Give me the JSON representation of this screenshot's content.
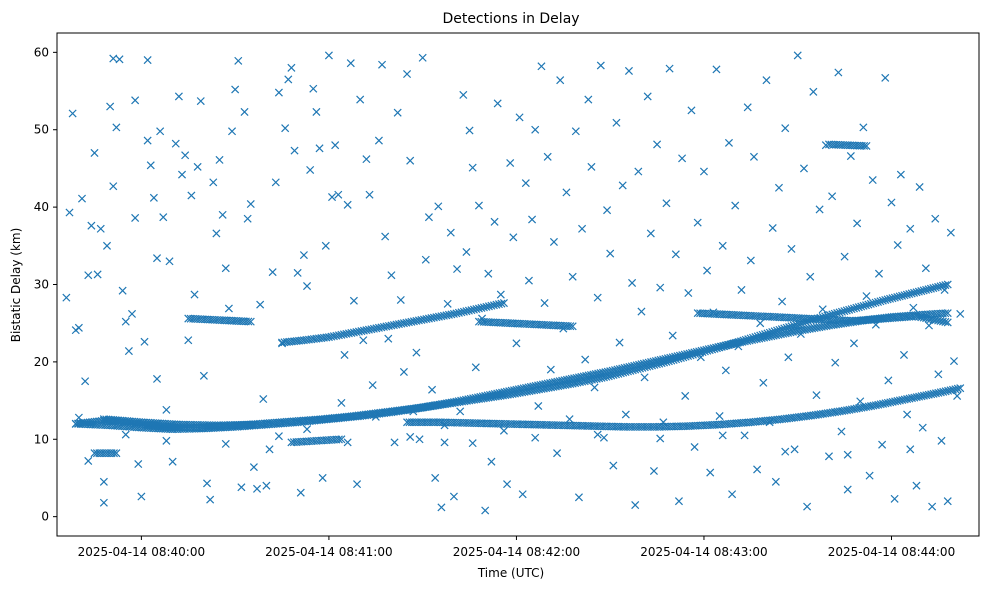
{
  "chart_data": {
    "type": "scatter",
    "title": "Detections in Delay",
    "xlabel": "Time (UTC)",
    "ylabel": "Bistatic Delay (km)",
    "marker": "x",
    "color": "#1f77b4",
    "grid": false,
    "x_tick_labels": [
      "2025-04-14 08:40:00",
      "2025-04-14 08:41:00",
      "2025-04-14 08:42:00",
      "2025-04-14 08:43:00",
      "2025-04-14 08:44:00"
    ],
    "x_ticks_sec": [
      0,
      60,
      120,
      180,
      240
    ],
    "xlim_sec": [
      -27,
      268
    ],
    "y_ticks": [
      0,
      10,
      20,
      30,
      40,
      50,
      60
    ],
    "ylim": [
      -2.5,
      62.5
    ],
    "tracks": [
      {
        "x_sec": [
          -21,
          -12,
          -2,
          8,
          18,
          28,
          38,
          48,
          58,
          68,
          78,
          88,
          98,
          108,
          118,
          128,
          138,
          148,
          158,
          168,
          178,
          188,
          198,
          208,
          218,
          228,
          238,
          248,
          258
        ],
        "y_km": [
          12.0,
          12.4,
          12.0,
          11.6,
          11.5,
          11.7,
          12.0,
          12.3,
          12.6,
          13.0,
          13.5,
          14.0,
          14.6,
          15.2,
          15.8,
          16.5,
          17.2,
          18.0,
          19.0,
          20.0,
          21.1,
          22.2,
          23.4,
          24.6,
          25.8,
          26.9,
          28.0,
          29.0,
          30.0
        ]
      },
      {
        "x_sec": [
          -21,
          -10,
          0,
          10,
          20,
          30,
          40,
          50,
          60,
          70,
          80,
          90,
          100,
          110,
          120,
          130,
          140,
          150,
          160,
          170,
          180,
          190,
          200,
          210,
          220,
          230,
          240,
          250,
          258
        ],
        "y_km": [
          12.0,
          11.8,
          11.5,
          11.3,
          11.4,
          11.6,
          11.9,
          12.2,
          12.6,
          13.0,
          13.5,
          14.1,
          14.8,
          15.6,
          16.4,
          17.2,
          18.0,
          18.8,
          19.7,
          20.6,
          21.5,
          22.4,
          23.2,
          24.0,
          24.7,
          25.3,
          25.8,
          26.1,
          26.3
        ]
      },
      {
        "x_sec": [
          45,
          52,
          60,
          68,
          76,
          84,
          92,
          100,
          108,
          116
        ],
        "y_km": [
          22.5,
          22.8,
          23.2,
          23.8,
          24.4,
          25.0,
          25.6,
          26.2,
          26.9,
          27.6
        ]
      },
      {
        "x_sec": [
          85,
          95,
          105,
          115,
          125,
          135,
          145,
          155,
          165,
          175,
          185,
          195,
          205,
          215,
          225,
          235,
          245,
          255,
          262
        ],
        "y_km": [
          12.2,
          12.2,
          12.1,
          12.0,
          11.9,
          11.8,
          11.7,
          11.6,
          11.6,
          11.7,
          11.9,
          12.2,
          12.6,
          13.1,
          13.7,
          14.4,
          15.2,
          16.0,
          16.6
        ]
      },
      {
        "x_sec": [
          15,
          25,
          35
        ],
        "y_km": [
          25.6,
          25.4,
          25.2
        ]
      },
      {
        "x_sec": [
          108,
          118,
          128,
          138
        ],
        "y_km": [
          25.2,
          25.0,
          24.8,
          24.6
        ]
      },
      {
        "x_sec": [
          178,
          188,
          198,
          208,
          218,
          228,
          238,
          248,
          258
        ],
        "y_km": [
          26.3,
          26.1,
          25.9,
          25.7,
          25.5,
          25.3,
          25.6,
          25.9,
          25.1
        ]
      },
      {
        "x_sec": [
          220,
          226,
          232
        ],
        "y_km": [
          48.1,
          48.0,
          47.9
        ]
      },
      {
        "x_sec": [
          -15,
          -8
        ],
        "y_km": [
          8.2,
          8.2
        ]
      },
      {
        "x_sec": [
          48,
          56,
          64
        ],
        "y_km": [
          9.6,
          9.8,
          10.0
        ]
      },
      {
        "x_sec": [
          -12,
          0,
          12,
          24,
          36
        ],
        "y_km": [
          12.6,
          12.2,
          11.9,
          11.8,
          11.9
        ]
      }
    ],
    "scatter_points": [
      [
        -24,
        28.3
      ],
      [
        -23,
        39.3
      ],
      [
        -22,
        52.1
      ],
      [
        -21,
        24.1
      ],
      [
        -20,
        24.4
      ],
      [
        -19,
        41.1
      ],
      [
        -18,
        17.5
      ],
      [
        -17,
        7.2
      ],
      [
        -17,
        31.2
      ],
      [
        -16,
        37.6
      ],
      [
        -15,
        47.0
      ],
      [
        -14,
        31.3
      ],
      [
        -13,
        37.2
      ],
      [
        -12,
        1.8
      ],
      [
        -12,
        4.5
      ],
      [
        -11,
        35.0
      ],
      [
        -10,
        53.0
      ],
      [
        -9,
        59.2
      ],
      [
        -9,
        42.7
      ],
      [
        -8,
        50.3
      ],
      [
        -7,
        59.1
      ],
      [
        -6,
        29.2
      ],
      [
        -5,
        25.2
      ],
      [
        -4,
        21.4
      ],
      [
        -3,
        26.2
      ],
      [
        -2,
        53.8
      ],
      [
        -2,
        38.6
      ],
      [
        -1,
        6.8
      ],
      [
        0,
        2.6
      ],
      [
        1,
        22.6
      ],
      [
        2,
        59.0
      ],
      [
        2,
        48.6
      ],
      [
        3,
        45.4
      ],
      [
        4,
        41.2
      ],
      [
        5,
        33.4
      ],
      [
        5,
        17.8
      ],
      [
        6,
        49.8
      ],
      [
        7,
        38.7
      ],
      [
        8,
        13.8
      ],
      [
        9,
        33.0
      ],
      [
        10,
        7.1
      ],
      [
        11,
        48.2
      ],
      [
        12,
        54.3
      ],
      [
        13,
        44.2
      ],
      [
        14,
        46.7
      ],
      [
        15,
        22.8
      ],
      [
        16,
        41.5
      ],
      [
        17,
        28.7
      ],
      [
        18,
        45.2
      ],
      [
        19,
        53.7
      ],
      [
        20,
        18.2
      ],
      [
        21,
        4.3
      ],
      [
        22,
        2.2
      ],
      [
        23,
        43.2
      ],
      [
        24,
        36.6
      ],
      [
        25,
        46.1
      ],
      [
        26,
        39.0
      ],
      [
        27,
        32.1
      ],
      [
        28,
        26.9
      ],
      [
        29,
        49.8
      ],
      [
        30,
        55.2
      ],
      [
        31,
        58.9
      ],
      [
        32,
        3.8
      ],
      [
        33,
        52.3
      ],
      [
        34,
        38.5
      ],
      [
        35,
        40.4
      ],
      [
        36,
        6.4
      ],
      [
        37,
        3.6
      ],
      [
        38,
        27.4
      ],
      [
        39,
        15.2
      ],
      [
        40,
        4.0
      ],
      [
        41,
        8.7
      ],
      [
        42,
        31.6
      ],
      [
        43,
        43.2
      ],
      [
        44,
        54.8
      ],
      [
        45,
        22.4
      ],
      [
        46,
        50.2
      ],
      [
        47,
        56.5
      ],
      [
        48,
        58.0
      ],
      [
        49,
        47.3
      ],
      [
        50,
        31.5
      ],
      [
        51,
        3.1
      ],
      [
        52,
        33.8
      ],
      [
        53,
        29.8
      ],
      [
        54,
        44.8
      ],
      [
        55,
        55.3
      ],
      [
        56,
        52.3
      ],
      [
        57,
        47.6
      ],
      [
        58,
        5.0
      ],
      [
        59,
        35.0
      ],
      [
        60,
        59.6
      ],
      [
        61,
        41.3
      ],
      [
        62,
        48.0
      ],
      [
        63,
        41.6
      ],
      [
        64,
        14.7
      ],
      [
        65,
        20.9
      ],
      [
        66,
        40.3
      ],
      [
        67,
        58.6
      ],
      [
        68,
        27.9
      ],
      [
        69,
        4.2
      ],
      [
        70,
        53.9
      ],
      [
        71,
        22.8
      ],
      [
        72,
        46.2
      ],
      [
        73,
        41.6
      ],
      [
        74,
        17.0
      ],
      [
        75,
        12.9
      ],
      [
        76,
        48.6
      ],
      [
        77,
        58.4
      ],
      [
        78,
        36.2
      ],
      [
        79,
        23.0
      ],
      [
        80,
        31.2
      ],
      [
        81,
        9.6
      ],
      [
        82,
        52.2
      ],
      [
        83,
        28.0
      ],
      [
        84,
        18.7
      ],
      [
        85,
        57.2
      ],
      [
        86,
        46.0
      ],
      [
        87,
        13.6
      ],
      [
        88,
        21.2
      ],
      [
        89,
        10.0
      ],
      [
        90,
        59.3
      ],
      [
        91,
        33.2
      ],
      [
        92,
        38.7
      ],
      [
        93,
        16.4
      ],
      [
        94,
        5.0
      ],
      [
        95,
        40.1
      ],
      [
        96,
        1.2
      ],
      [
        97,
        9.6
      ],
      [
        98,
        27.5
      ],
      [
        99,
        36.7
      ],
      [
        100,
        2.6
      ],
      [
        101,
        32.0
      ],
      [
        102,
        13.6
      ],
      [
        103,
        54.5
      ],
      [
        104,
        34.2
      ],
      [
        105,
        49.9
      ],
      [
        106,
        45.1
      ],
      [
        107,
        19.3
      ],
      [
        108,
        40.2
      ],
      [
        109,
        25.6
      ],
      [
        110,
        0.8
      ],
      [
        111,
        31.4
      ],
      [
        112,
        7.1
      ],
      [
        113,
        38.1
      ],
      [
        114,
        53.4
      ],
      [
        115,
        28.7
      ],
      [
        116,
        11.1
      ],
      [
        117,
        4.2
      ],
      [
        118,
        45.7
      ],
      [
        119,
        36.1
      ],
      [
        120,
        22.4
      ],
      [
        121,
        51.6
      ],
      [
        122,
        2.9
      ],
      [
        123,
        43.1
      ],
      [
        124,
        30.5
      ],
      [
        125,
        38.4
      ],
      [
        126,
        50.0
      ],
      [
        127,
        14.3
      ],
      [
        128,
        58.2
      ],
      [
        129,
        27.6
      ],
      [
        130,
        46.5
      ],
      [
        131,
        19.0
      ],
      [
        132,
        35.5
      ],
      [
        133,
        8.2
      ],
      [
        134,
        56.4
      ],
      [
        135,
        24.3
      ],
      [
        136,
        41.9
      ],
      [
        137,
        12.6
      ],
      [
        138,
        31.0
      ],
      [
        139,
        49.8
      ],
      [
        140,
        2.5
      ],
      [
        141,
        37.2
      ],
      [
        142,
        20.3
      ],
      [
        143,
        53.9
      ],
      [
        144,
        45.2
      ],
      [
        145,
        16.7
      ],
      [
        146,
        28.3
      ],
      [
        147,
        58.3
      ],
      [
        148,
        10.2
      ],
      [
        149,
        39.6
      ],
      [
        150,
        34.0
      ],
      [
        151,
        6.6
      ],
      [
        152,
        50.9
      ],
      [
        153,
        22.5
      ],
      [
        154,
        42.8
      ],
      [
        155,
        13.2
      ],
      [
        156,
        57.6
      ],
      [
        157,
        30.2
      ],
      [
        158,
        1.5
      ],
      [
        159,
        44.6
      ],
      [
        160,
        26.5
      ],
      [
        161,
        18.0
      ],
      [
        162,
        54.3
      ],
      [
        163,
        36.6
      ],
      [
        164,
        5.9
      ],
      [
        165,
        48.1
      ],
      [
        166,
        29.6
      ],
      [
        167,
        12.2
      ],
      [
        168,
        40.5
      ],
      [
        169,
        57.9
      ],
      [
        170,
        23.4
      ],
      [
        171,
        33.9
      ],
      [
        172,
        2.0
      ],
      [
        173,
        46.3
      ],
      [
        174,
        15.6
      ],
      [
        175,
        28.9
      ],
      [
        176,
        52.5
      ],
      [
        177,
        9.0
      ],
      [
        178,
        38.0
      ],
      [
        179,
        20.6
      ],
      [
        180,
        44.6
      ],
      [
        181,
        31.8
      ],
      [
        182,
        5.7
      ],
      [
        183,
        26.4
      ],
      [
        184,
        57.8
      ],
      [
        185,
        13.0
      ],
      [
        186,
        35.0
      ],
      [
        187,
        18.9
      ],
      [
        188,
        48.3
      ],
      [
        189,
        2.9
      ],
      [
        190,
        40.2
      ],
      [
        191,
        22.0
      ],
      [
        192,
        29.3
      ],
      [
        193,
        10.5
      ],
      [
        194,
        52.9
      ],
      [
        195,
        33.1
      ],
      [
        196,
        46.5
      ],
      [
        197,
        6.1
      ],
      [
        198,
        25.0
      ],
      [
        199,
        17.3
      ],
      [
        200,
        56.4
      ],
      [
        201,
        12.2
      ],
      [
        202,
        37.3
      ],
      [
        203,
        4.5
      ],
      [
        204,
        42.5
      ],
      [
        205,
        27.8
      ],
      [
        206,
        50.2
      ],
      [
        207,
        20.6
      ],
      [
        208,
        34.6
      ],
      [
        209,
        8.7
      ],
      [
        210,
        59.6
      ],
      [
        211,
        23.6
      ],
      [
        212,
        45.0
      ],
      [
        213,
        1.3
      ],
      [
        214,
        31.0
      ],
      [
        215,
        54.9
      ],
      [
        216,
        15.7
      ],
      [
        217,
        39.7
      ],
      [
        218,
        26.8
      ],
      [
        219,
        48.0
      ],
      [
        220,
        7.8
      ],
      [
        221,
        41.4
      ],
      [
        222,
        19.9
      ],
      [
        223,
        57.4
      ],
      [
        224,
        11.0
      ],
      [
        225,
        33.6
      ],
      [
        226,
        3.5
      ],
      [
        227,
        46.6
      ],
      [
        228,
        22.4
      ],
      [
        229,
        37.9
      ],
      [
        230,
        14.9
      ],
      [
        231,
        50.3
      ],
      [
        232,
        28.5
      ],
      [
        233,
        5.3
      ],
      [
        234,
        43.5
      ],
      [
        235,
        24.8
      ],
      [
        236,
        31.4
      ],
      [
        237,
        9.3
      ],
      [
        238,
        56.7
      ],
      [
        239,
        17.6
      ],
      [
        240,
        40.6
      ],
      [
        241,
        2.3
      ],
      [
        242,
        35.1
      ],
      [
        243,
        44.2
      ],
      [
        244,
        20.9
      ],
      [
        245,
        13.2
      ],
      [
        246,
        37.2
      ],
      [
        247,
        27.0
      ],
      [
        248,
        4.0
      ],
      [
        249,
        42.6
      ],
      [
        250,
        11.5
      ],
      [
        251,
        32.1
      ],
      [
        252,
        24.7
      ],
      [
        253,
        1.3
      ],
      [
        254,
        38.5
      ],
      [
        255,
        18.4
      ],
      [
        256,
        9.8
      ],
      [
        257,
        29.3
      ],
      [
        258,
        2.0
      ],
      [
        259,
        36.7
      ],
      [
        260,
        20.1
      ],
      [
        261,
        15.6
      ],
      [
        262,
        26.2
      ],
      [
        -5,
        10.6
      ],
      [
        8,
        9.8
      ],
      [
        27,
        9.4
      ],
      [
        44,
        10.4
      ],
      [
        66,
        9.6
      ],
      [
        86,
        10.3
      ],
      [
        106,
        9.5
      ],
      [
        126,
        10.2
      ],
      [
        146,
        10.6
      ],
      [
        166,
        10.1
      ],
      [
        186,
        10.5
      ],
      [
        206,
        8.4
      ],
      [
        226,
        8.0
      ],
      [
        246,
        8.7
      ],
      [
        -20,
        12.8
      ],
      [
        53,
        11.3
      ],
      [
        97,
        11.8
      ]
    ]
  }
}
